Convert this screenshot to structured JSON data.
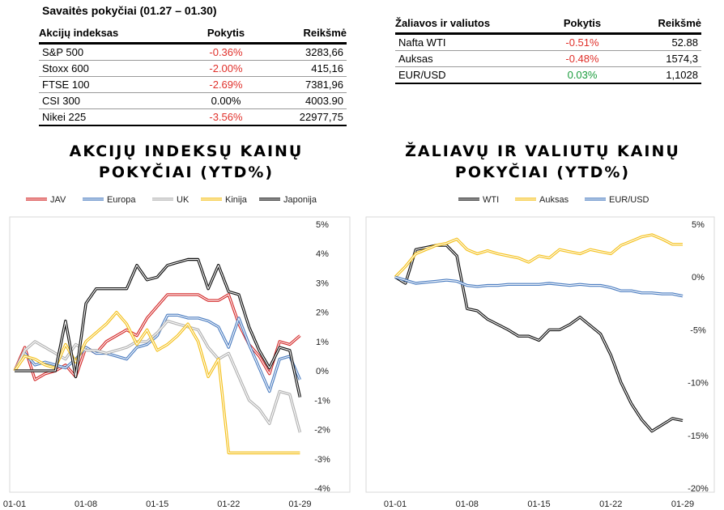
{
  "table1": {
    "title": "Savaitės pokyčiai (01.27 – 01.30)",
    "headers": [
      "Akcijų indeksas",
      "Pokytis",
      "Reikšmė"
    ],
    "rows": [
      {
        "name": "S&P 500",
        "change": "-0.36%",
        "value": "3283,66",
        "tone": "neg"
      },
      {
        "name": "Stoxx 600",
        "change": "-2.00%",
        "value": "415,16",
        "tone": "neg"
      },
      {
        "name": "FTSE 100",
        "change": "-2.69%",
        "value": "7381,96",
        "tone": "neg"
      },
      {
        "name": "CSI 300",
        "change": "0.00%",
        "value": "4003.90",
        "tone": "zero"
      },
      {
        "name": "Nikei 225",
        "change": "-3.56%",
        "value": "22977,75",
        "tone": "neg"
      }
    ]
  },
  "table2": {
    "headers": [
      "Žaliavos ir valiutos",
      "Pokytis",
      "Reikšmė"
    ],
    "rows": [
      {
        "name": "Nafta WTI",
        "change": "-0.51%",
        "value": "52.88",
        "tone": "neg"
      },
      {
        "name": "Auksas",
        "change": "-0.48%",
        "value": "1574,3",
        "tone": "neg"
      },
      {
        "name": "EUR/USD",
        "change": "0.03%",
        "value": "1,1028",
        "tone": "pos"
      }
    ]
  },
  "chart_data": [
    {
      "type": "line",
      "title": "AKCIJŲ INDEKSŲ KAINŲ POKYČIAI (YTD%)",
      "x_ticks": [
        "01-01",
        "01-08",
        "01-15",
        "01-22",
        "01-29"
      ],
      "x_tick_positions": [
        0,
        7,
        14,
        21,
        28
      ],
      "x": [
        0,
        1,
        2,
        3,
        4,
        5,
        6,
        7,
        8,
        9,
        10,
        11,
        12,
        13,
        14,
        15,
        16,
        17,
        18,
        19,
        20,
        21,
        22,
        23,
        24,
        25,
        26,
        27,
        28,
        29
      ],
      "ylim": [
        -4,
        5
      ],
      "y_ticks": [
        "5%",
        "4%",
        "3%",
        "2%",
        "1%",
        "0%",
        "-1%",
        "-2%",
        "-3%",
        "-4%"
      ],
      "y_tick_values": [
        5,
        4,
        3,
        2,
        1,
        0,
        -1,
        -2,
        -3,
        -4
      ],
      "legend_position": "top",
      "series": [
        {
          "name": "JAV",
          "color": "#d42a2a",
          "values": [
            0,
            0.8,
            -0.3,
            -0.1,
            0,
            0.2,
            -0.2,
            0.8,
            0.6,
            1.0,
            1.2,
            1.4,
            1.2,
            1.8,
            2.2,
            2.6,
            2.6,
            2.6,
            2.6,
            2.4,
            2.4,
            2.6,
            1.6,
            0.9,
            0.5,
            -0.1,
            1.0,
            0.9,
            1.2,
            null
          ]
        },
        {
          "name": "Europa",
          "color": "#4a7cc0",
          "values": [
            0,
            0.6,
            0.2,
            0.3,
            0.2,
            0.1,
            0.4,
            0.8,
            0.6,
            0.6,
            0.5,
            0.4,
            0.8,
            0.9,
            1.2,
            1.9,
            1.9,
            1.8,
            1.8,
            1.7,
            1.5,
            0.8,
            1.8,
            0.9,
            0.1,
            -0.7,
            0.4,
            0.5,
            -0.3,
            null
          ]
        },
        {
          "name": "UK",
          "color": "#b0b0b0",
          "values": [
            0,
            0.7,
            1.0,
            0.8,
            0.6,
            0.4,
            0.9,
            0.7,
            0.7,
            0.6,
            0.7,
            0.8,
            1.0,
            1.0,
            1.3,
            1.7,
            1.6,
            1.5,
            1.4,
            0.8,
            0.4,
            0.6,
            -0.2,
            -1.0,
            -1.3,
            -1.8,
            -0.7,
            -0.8,
            -2.1,
            null
          ]
        },
        {
          "name": "Kinija",
          "color": "#f4c01a",
          "values": [
            0,
            0.5,
            0.4,
            0.2,
            0.1,
            0.9,
            0.3,
            1.0,
            1.3,
            1.6,
            2.0,
            1.6,
            0.9,
            1.4,
            0.7,
            0.9,
            1.2,
            1.6,
            1.0,
            -0.2,
            0.4,
            -2.8,
            -2.8,
            -2.8,
            -2.8,
            -2.8,
            -2.8,
            -2.8,
            -2.8,
            null
          ]
        },
        {
          "name": "Japonija",
          "color": "#111111",
          "values": [
            0,
            0,
            0,
            0,
            0,
            1.7,
            -0.2,
            2.3,
            2.8,
            2.8,
            2.8,
            2.8,
            3.6,
            3.1,
            3.2,
            3.6,
            3.7,
            3.8,
            3.8,
            2.8,
            3.6,
            2.7,
            2.6,
            1.5,
            0.7,
            0.1,
            0.8,
            0.7,
            -0.9,
            null
          ]
        }
      ]
    },
    {
      "type": "line",
      "title": "ŽALIAVŲ IR VALIUTŲ KAINŲ POKYČIAI (YTD%)",
      "x_ticks": [
        "01-01",
        "01-08",
        "01-15",
        "01-22",
        "01-29"
      ],
      "x_tick_positions": [
        0,
        7,
        14,
        21,
        28
      ],
      "x": [
        0,
        1,
        2,
        3,
        4,
        5,
        6,
        7,
        8,
        9,
        10,
        11,
        12,
        13,
        14,
        15,
        16,
        17,
        18,
        19,
        20,
        21,
        22,
        23,
        24,
        25,
        26,
        27,
        28
      ],
      "ylim": [
        -20,
        5
      ],
      "y_ticks": [
        "5%",
        "0%",
        "-5%",
        "-10%",
        "-15%",
        "-20%"
      ],
      "y_tick_values": [
        5,
        0,
        -5,
        -10,
        -15,
        -20
      ],
      "legend_position": "top",
      "series": [
        {
          "name": "WTI",
          "color": "#111111",
          "values": [
            0,
            -0.6,
            2.6,
            2.8,
            3.0,
            3.0,
            2.0,
            -3.0,
            -3.2,
            -4.0,
            -4.5,
            -5.0,
            -5.6,
            -5.6,
            -6.0,
            -5.0,
            -5.0,
            -4.5,
            -3.8,
            -4.6,
            -5.4,
            -7.4,
            -10.0,
            -12.0,
            -13.5,
            -14.6,
            -14.0,
            -13.4,
            -13.6
          ]
        },
        {
          "name": "Auksas",
          "color": "#f4c01a",
          "values": [
            0,
            1.0,
            2.2,
            2.6,
            3.0,
            3.2,
            3.6,
            2.6,
            2.2,
            2.5,
            2.2,
            2.0,
            1.8,
            1.4,
            2.0,
            1.8,
            2.6,
            2.4,
            2.2,
            2.6,
            2.4,
            2.2,
            3.0,
            3.4,
            3.8,
            4.0,
            3.6,
            3.1,
            3.1
          ]
        },
        {
          "name": "EUR/USD",
          "color": "#4a7cc0",
          "values": [
            0,
            -0.3,
            -0.6,
            -0.5,
            -0.4,
            -0.3,
            -0.4,
            -0.8,
            -0.9,
            -0.8,
            -0.8,
            -0.7,
            -0.7,
            -0.7,
            -0.7,
            -0.6,
            -0.7,
            -0.8,
            -0.7,
            -0.8,
            -0.8,
            -1.0,
            -1.3,
            -1.3,
            -1.5,
            -1.5,
            -1.6,
            -1.6,
            -1.8
          ]
        }
      ]
    }
  ]
}
